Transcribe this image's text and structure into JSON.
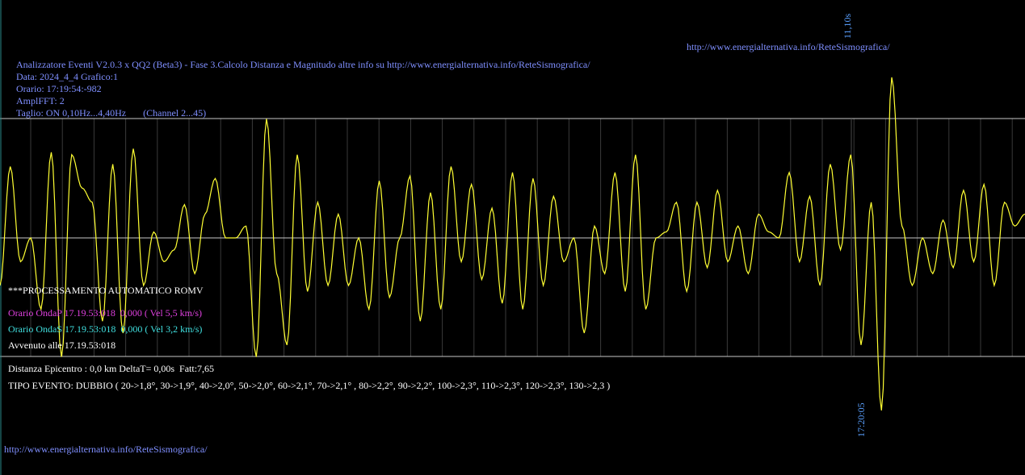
{
  "header": {
    "url_top": "http://www.energialternativa.info/ReteSismografica/",
    "title_line": "Analizzatore Eventi V2.0.3 x QQ2 (Beta3) - Fase 3.Calcolo Distanza e Magnitudo altre info su http://www.energialternativa.info/ReteSismografica/",
    "date_line": "Data: 2024_4_4 Grafico:1",
    "time_line": "Orario: 17:19:54:-982",
    "ampl_line": "AmplFFT: 2",
    "cut_line": "Taglio: ON 0,10Hz...4,40Hz       (Channel 2...45)"
  },
  "processing": {
    "title": "***PROCESSAMENTO AUTOMATICO ROMV",
    "wave_p": "Orario OndaP 17.19.53:018  0,000 ( Vel 5,5 km/s)",
    "wave_s": "Orario OndaS 17.19.53:018  0,000 ( Vel 3,2 km/s)",
    "occurred": "Avvenuto alle 17.19.53:018",
    "distance": "Distanza Epicentro : 0,0 km DeltaT= 0,00s  Fatt:7,65",
    "event_type": "TIPO EVENTO: DUBBIO ( 20->1,8°, 30->1,9°, 40->2,0°, 50->2,0°, 60->2,1°, 70->2,1° , 80->2,2°, 90->2,2°, 100->2,3°, 110->2,3°, 120->2,3°, 130->2,3 )"
  },
  "footer": {
    "url_bottom": "http://www.energialternativa.info/ReteSismografica/"
  },
  "markers": {
    "top_label": "11,10s",
    "bottom_label": "17:20:05"
  },
  "colors": {
    "trace": "#ffff33",
    "grid": "#3a3a3a",
    "axis": "#c8c8c8",
    "text_blue": "#7f8fff",
    "marker": "#5aa0ff"
  },
  "chart_data": {
    "type": "line",
    "title": "",
    "xlabel": "",
    "ylabel": "",
    "ylim": [
      -1.0,
      1.0
    ],
    "grid": true,
    "x": [
      0,
      1,
      2,
      3,
      4,
      5,
      6,
      7,
      8,
      9,
      10,
      11,
      12,
      13,
      14,
      15,
      16,
      17,
      18,
      19,
      20,
      21,
      22,
      23,
      24,
      25,
      26,
      27,
      28,
      29,
      30,
      31,
      32,
      33,
      34,
      35,
      36,
      37,
      38,
      39,
      40,
      41,
      42,
      43,
      44,
      45,
      46,
      47,
      48,
      49,
      50,
      51,
      52,
      53,
      54,
      55,
      56,
      57,
      58,
      59,
      60,
      61,
      62,
      63,
      64,
      65,
      66,
      67,
      68,
      69,
      70,
      71,
      72,
      73,
      74,
      75,
      76,
      77,
      78,
      79,
      80,
      81,
      82,
      83,
      84,
      85,
      86,
      87,
      88,
      89,
      90,
      91,
      92,
      93,
      94,
      95,
      96,
      97,
      98,
      99,
      100
    ],
    "series": [
      {
        "values": [
          -0.4,
          0.6,
          -0.2,
          0.0,
          -0.6,
          0.72,
          -1.0,
          0.7,
          0.42,
          0.3,
          -0.7,
          0.62,
          -0.8,
          0.75,
          -0.4,
          0.05,
          -0.2,
          -0.1,
          0.28,
          -0.3,
          0.2,
          0.5,
          0.0,
          0.0,
          0.1,
          -1.0,
          1.0,
          -0.3,
          -0.9,
          0.7,
          -0.45,
          0.3,
          -0.4,
          0.2,
          -0.4,
          0.0,
          -0.6,
          0.48,
          -0.5,
          0.0,
          0.52,
          -0.7,
          0.38,
          -0.6,
          0.6,
          -0.2,
          0.45,
          -0.35,
          0.25,
          -0.55,
          0.55,
          -0.6,
          0.5,
          -0.4,
          0.35,
          -0.2,
          0.0,
          -0.8,
          0.1,
          -0.3,
          0.55,
          -0.45,
          0.7,
          -0.6,
          0.0,
          0.05,
          0.3,
          -0.45,
          0.3,
          -0.25,
          0.4,
          -0.2,
          0.1,
          -0.3,
          0.2,
          0.05,
          0.0,
          0.55,
          -0.2,
          0.35,
          -0.4,
          0.62,
          -0.1,
          0.7,
          -0.9,
          0.3,
          -1.45,
          1.35,
          0.1,
          -0.4,
          0.0,
          -0.3,
          0.15,
          -0.25,
          0.4,
          -0.2,
          0.45,
          -0.4,
          0.3,
          0.1,
          0.2
        ]
      }
    ]
  }
}
